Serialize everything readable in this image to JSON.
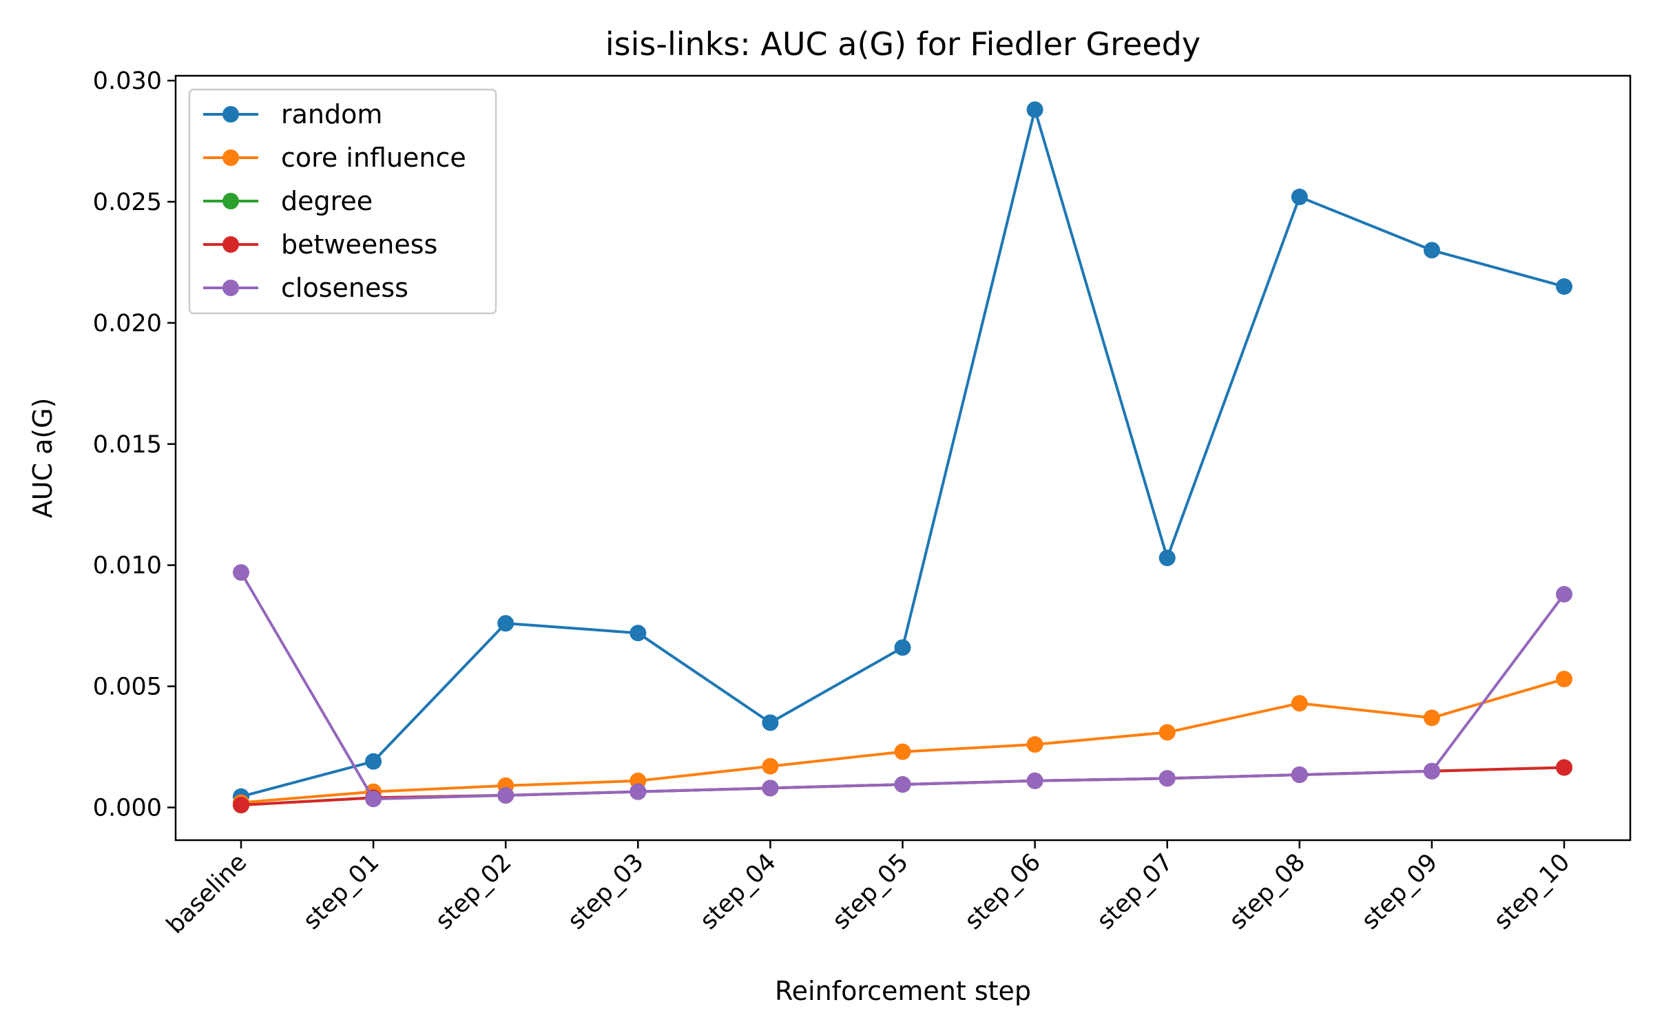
{
  "chart_data": {
    "type": "line",
    "title": "isis-links: AUC a(G) for Fiedler Greedy",
    "xlabel": "Reinforcement step",
    "ylabel": "AUC a(G)",
    "categories": [
      "baseline",
      "step_01",
      "step_02",
      "step_03",
      "step_04",
      "step_05",
      "step_06",
      "step_07",
      "step_08",
      "step_09",
      "step_10"
    ],
    "ylim": [
      -0.00135,
      0.0302
    ],
    "yticks": [
      "0.000",
      "0.005",
      "0.010",
      "0.015",
      "0.020",
      "0.025",
      "0.030"
    ],
    "ytick_values": [
      0,
      0.005,
      0.01,
      0.015,
      0.02,
      0.025,
      0.03
    ],
    "grid": false,
    "legend_position": "top-left",
    "series": [
      {
        "name": "random",
        "color": "#1f77b4",
        "values": [
          0.00045,
          0.0019,
          0.0076,
          0.0072,
          0.0035,
          0.0066,
          0.0288,
          0.0103,
          0.0252,
          0.023,
          0.0215
        ]
      },
      {
        "name": "core influence",
        "color": "#ff7f0e",
        "values": [
          0.0002,
          0.00065,
          0.0009,
          0.0011,
          0.0017,
          0.0023,
          0.0026,
          0.0031,
          0.0043,
          0.0037,
          0.0053
        ]
      },
      {
        "name": "degree",
        "color": "#2ca02c",
        "values": [
          0.0001,
          0.0004,
          0.0005,
          0.00065,
          0.0008,
          0.00095,
          0.0011,
          0.0012,
          0.00135,
          0.0015,
          0.00165
        ]
      },
      {
        "name": "betweeness",
        "color": "#d62728",
        "values": [
          0.0001,
          0.0004,
          0.0005,
          0.00065,
          0.0008,
          0.00095,
          0.0011,
          0.0012,
          0.00135,
          0.0015,
          0.00165
        ]
      },
      {
        "name": "closeness",
        "color": "#9467bd",
        "values": [
          0.0097,
          0.00035,
          0.0005,
          0.00065,
          0.0008,
          0.00095,
          0.0011,
          0.0012,
          0.00135,
          0.0015,
          0.0088
        ]
      }
    ]
  }
}
